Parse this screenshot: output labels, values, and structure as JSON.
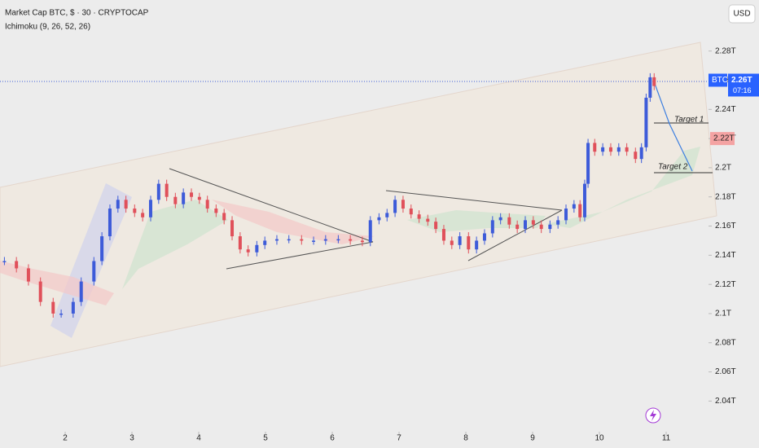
{
  "chart_data": {
    "type": "candlestick",
    "title": "Market Cap BTC, $ · 30 · CRYPTOCAP",
    "subtitle": "Ichimoku (9, 26, 52, 26)",
    "currency": "USD",
    "symbol": "BTC",
    "last_price": {
      "value": 2.26,
      "label": "2.26T"
    },
    "countdown": "07:16",
    "marker": {
      "value": 2.22,
      "label": "2.22T"
    },
    "annotations": [
      "Target 1",
      "Target 2"
    ],
    "up_color": "#3d5bd9",
    "down_color": "#e0505a",
    "x": [
      1.09,
      1.27,
      1.45,
      1.63,
      1.82,
      1.94,
      2.12,
      2.24,
      2.43,
      2.55,
      2.67,
      2.79,
      2.91,
      3.04,
      3.16,
      3.28,
      3.4,
      3.52,
      3.65,
      3.77,
      3.89,
      4.01,
      4.13,
      4.26,
      4.38,
      4.5,
      4.62,
      4.74,
      4.87,
      4.99,
      5.17,
      5.35,
      5.54,
      5.72,
      5.9,
      6.09,
      6.27,
      6.45,
      6.57,
      6.7,
      6.82,
      6.94,
      7.06,
      7.18,
      7.3,
      7.43,
      7.55,
      7.67,
      7.79,
      7.91,
      8.04,
      8.16,
      8.28,
      8.4,
      8.52,
      8.65,
      8.77,
      8.89,
      9.01,
      9.13,
      9.26,
      9.38,
      9.5,
      9.62,
      9.71,
      9.78,
      9.83,
      9.93,
      10.05,
      10.17,
      10.29,
      10.41,
      10.54,
      10.63,
      10.7,
      10.76,
      10.82
    ],
    "values": [
      2.136,
      2.131,
      2.122,
      2.108,
      2.1,
      2.1,
      2.108,
      2.122,
      2.136,
      2.153,
      2.172,
      2.178,
      2.172,
      2.169,
      2.166,
      2.178,
      2.189,
      2.18,
      2.175,
      2.183,
      2.18,
      2.178,
      2.172,
      2.169,
      2.164,
      2.153,
      2.144,
      2.142,
      2.147,
      2.15,
      2.151,
      2.151,
      2.15,
      2.15,
      2.151,
      2.151,
      2.15,
      2.149,
      2.164,
      2.166,
      2.169,
      2.178,
      2.172,
      2.168,
      2.165,
      2.163,
      2.158,
      2.15,
      2.147,
      2.153,
      2.144,
      2.15,
      2.155,
      2.164,
      2.166,
      2.161,
      2.158,
      2.164,
      2.161,
      2.158,
      2.161,
      2.164,
      2.172,
      2.175,
      2.166,
      2.189,
      2.217,
      2.211,
      2.214,
      2.211,
      2.214,
      2.211,
      2.206,
      2.214,
      2.248,
      2.262,
      2.256
    ],
    "xlim": [
      1.024,
      11.634
    ],
    "xticks": [
      2,
      3,
      4,
      5,
      6,
      7,
      8,
      9,
      10,
      11
    ],
    "ylim": [
      2.019,
      2.315
    ],
    "yticks": [
      {
        "value": 2.04,
        "label": "2.04T"
      },
      {
        "value": 2.06,
        "label": "2.06T"
      },
      {
        "value": 2.08,
        "label": "2.08T"
      },
      {
        "value": 2.1,
        "label": "2.1T"
      },
      {
        "value": 2.12,
        "label": "2.12T"
      },
      {
        "value": 2.14,
        "label": "2.14T"
      },
      {
        "value": 2.16,
        "label": "2.16T"
      },
      {
        "value": 2.18,
        "label": "2.18T"
      },
      {
        "value": 2.2,
        "label": "2.2T"
      },
      {
        "value": 2.22,
        "label": "2.22T"
      },
      {
        "value": 2.24,
        "label": "2.24T"
      },
      {
        "value": 2.26,
        "label": "2.26T"
      },
      {
        "value": 2.28,
        "label": "2.28T"
      }
    ]
  }
}
